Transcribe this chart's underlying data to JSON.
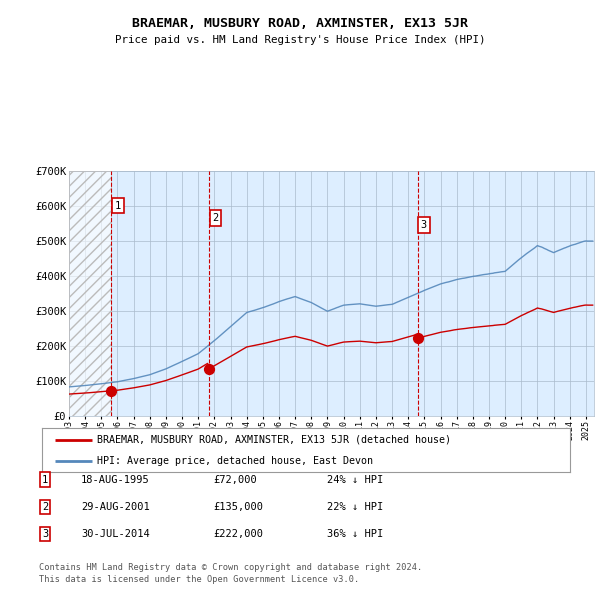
{
  "title": "BRAEMAR, MUSBURY ROAD, AXMINSTER, EX13 5JR",
  "subtitle": "Price paid vs. HM Land Registry's House Price Index (HPI)",
  "legend_line1": "BRAEMAR, MUSBURY ROAD, AXMINSTER, EX13 5JR (detached house)",
  "legend_line2": "HPI: Average price, detached house, East Devon",
  "footnote1": "Contains HM Land Registry data © Crown copyright and database right 2024.",
  "footnote2": "This data is licensed under the Open Government Licence v3.0.",
  "table_rows": [
    [
      "1",
      "18-AUG-1995",
      "£72,000",
      "24% ↓ HPI"
    ],
    [
      "2",
      "29-AUG-2001",
      "£135,000",
      "22% ↓ HPI"
    ],
    [
      "3",
      "30-JUL-2014",
      "£222,000",
      "36% ↓ HPI"
    ]
  ],
  "sale_years": [
    1995.626,
    2001.659,
    2014.579
  ],
  "sale_prices": [
    72000,
    135000,
    222000
  ],
  "ylim": [
    0,
    700000
  ],
  "yticks": [
    0,
    100000,
    200000,
    300000,
    400000,
    500000,
    600000,
    700000
  ],
  "ytick_labels": [
    "£0",
    "£100K",
    "£200K",
    "£300K",
    "£400K",
    "£500K",
    "£600K",
    "£700K"
  ],
  "xlim_start": 1993.0,
  "xlim_end": 2025.5,
  "red_line_color": "#cc0000",
  "blue_line_color": "#5588bb",
  "chart_bg_color": "#ddeeff",
  "hatch_color": "#bbbbbb",
  "grid_color": "#aabbcc",
  "dashed_line_color": "#cc0000",
  "box_border_color": "#cc0000",
  "background_color": "#ffffff"
}
